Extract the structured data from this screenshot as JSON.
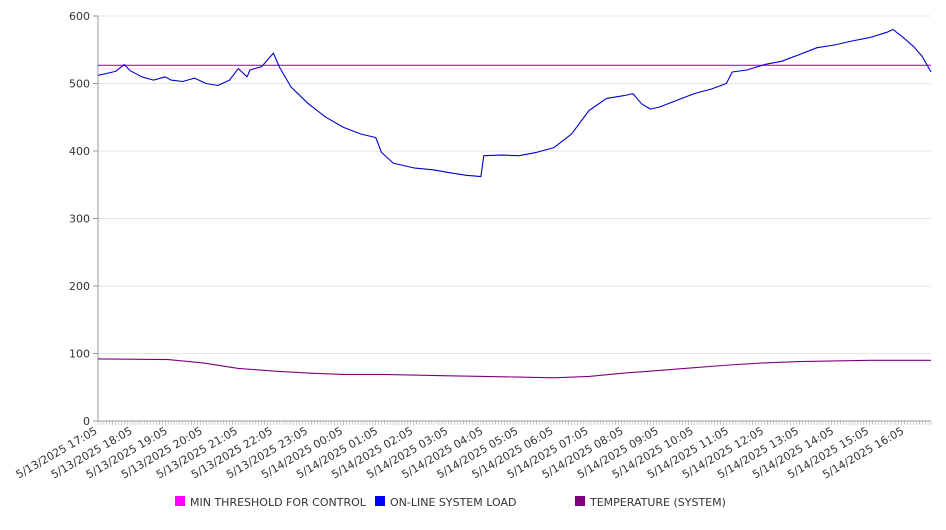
{
  "chart_data": {
    "type": "line",
    "title": "",
    "xlabel": "",
    "ylabel": "",
    "ylim": [
      0,
      600
    ],
    "yticks": [
      "0",
      "100",
      "200",
      "300",
      "400",
      "500",
      "600"
    ],
    "xlim": [
      "5/13/2025 17:05",
      "5/14/2025 16:50"
    ],
    "x_tick_labels": [
      "5/13/2025 17:05",
      "5/13/2025 18:05",
      "5/13/2025 19:05",
      "5/13/2025 20:05",
      "5/13/2025 21:05",
      "5/13/2025 22:05",
      "5/13/2025 23:05",
      "5/14/2025 00:05",
      "5/14/2025 01:05",
      "5/14/2025 02:05",
      "5/14/2025 03:05",
      "5/14/2025 04:05",
      "5/14/2025 05:05",
      "5/14/2025 06:05",
      "5/14/2025 07:05",
      "5/14/2025 08:05",
      "5/14/2025 09:05",
      "5/14/2025 10:05",
      "5/14/2025 11:05",
      "5/14/2025 12:05",
      "5/14/2025 13:05",
      "5/14/2025 14:05",
      "5/14/2025 15:05",
      "5/14/2025 16:05"
    ],
    "grid": true,
    "legend_position": "bottom",
    "series": [
      {
        "name": "MIN THRESHOLD FOR CONTROL",
        "color": "#cc00cc",
        "x": [
          "5/13/2025 17:05",
          "5/14/2025 16:50"
        ],
        "values": [
          527,
          527
        ]
      },
      {
        "name": "ON-LINE SYSTEM LOAD",
        "color": "#0000cc",
        "x": [
          "5/13/2025 17:05",
          "5/13/2025 17:35",
          "5/13/2025 17:50",
          "5/13/2025 18:00",
          "5/13/2025 18:20",
          "5/13/2025 18:40",
          "5/13/2025 19:00",
          "5/13/2025 19:10",
          "5/13/2025 19:30",
          "5/13/2025 19:50",
          "5/13/2025 20:10",
          "5/13/2025 20:30",
          "5/13/2025 20:50",
          "5/13/2025 21:05",
          "5/13/2025 21:20",
          "5/13/2025 21:25",
          "5/13/2025 21:45",
          "5/13/2025 22:05",
          "5/13/2025 22:15",
          "5/13/2025 22:35",
          "5/13/2025 23:05",
          "5/13/2025 23:35",
          "5/14/2025 00:05",
          "5/14/2025 00:35",
          "5/14/2025 01:00",
          "5/14/2025 01:10",
          "5/14/2025 01:30",
          "5/14/2025 02:05",
          "5/14/2025 02:40",
          "5/14/2025 03:05",
          "5/14/2025 03:35",
          "5/14/2025 04:00",
          "5/14/2025 04:05",
          "5/14/2025 04:35",
          "5/14/2025 05:05",
          "5/14/2025 05:35",
          "5/14/2025 06:05",
          "5/14/2025 06:35",
          "5/14/2025 07:05",
          "5/14/2025 07:35",
          "5/14/2025 08:05",
          "5/14/2025 08:20",
          "5/14/2025 08:35",
          "5/14/2025 08:50",
          "5/14/2025 09:05",
          "5/14/2025 09:35",
          "5/14/2025 10:05",
          "5/14/2025 10:35",
          "5/14/2025 11:00",
          "5/14/2025 11:10",
          "5/14/2025 11:35",
          "5/14/2025 12:05",
          "5/14/2025 12:35",
          "5/14/2025 13:05",
          "5/14/2025 13:35",
          "5/14/2025 14:05",
          "5/14/2025 14:35",
          "5/14/2025 15:05",
          "5/14/2025 15:35",
          "5/14/2025 15:45",
          "5/14/2025 16:00",
          "5/14/2025 16:20",
          "5/14/2025 16:35",
          "5/14/2025 16:50"
        ],
        "values": [
          512,
          518,
          528,
          519,
          510,
          505,
          510,
          505,
          503,
          508,
          500,
          497,
          505,
          522,
          510,
          520,
          525,
          545,
          525,
          495,
          470,
          450,
          435,
          425,
          420,
          398,
          382,
          375,
          372,
          368,
          364,
          362,
          393,
          394,
          393,
          398,
          405,
          425,
          460,
          478,
          482,
          485,
          470,
          462,
          465,
          475,
          485,
          492,
          500,
          517,
          520,
          528,
          533,
          543,
          553,
          557,
          563,
          568,
          576,
          580,
          570,
          555,
          540,
          517
        ]
      },
      {
        "name": "TEMPERATURE (SYSTEM)",
        "color": "#800080",
        "x": [
          "5/13/2025 17:05",
          "5/13/2025 19:05",
          "5/13/2025 20:05",
          "5/13/2025 21:05",
          "5/13/2025 22:05",
          "5/13/2025 23:05",
          "5/14/2025 00:05",
          "5/14/2025 01:05",
          "5/14/2025 02:05",
          "5/14/2025 03:05",
          "5/14/2025 04:05",
          "5/14/2025 05:05",
          "5/14/2025 06:05",
          "5/14/2025 07:05",
          "5/14/2025 08:05",
          "5/14/2025 09:05",
          "5/14/2025 10:05",
          "5/14/2025 11:05",
          "5/14/2025 12:05",
          "5/14/2025 13:05",
          "5/14/2025 14:05",
          "5/14/2025 15:05",
          "5/14/2025 16:05",
          "5/14/2025 16:50"
        ],
        "values": [
          92,
          91,
          86,
          78,
          74,
          71,
          69,
          69,
          68,
          67,
          66,
          65,
          64,
          66,
          71,
          75,
          79,
          83,
          86,
          88,
          89,
          90,
          90,
          90
        ]
      }
    ]
  }
}
